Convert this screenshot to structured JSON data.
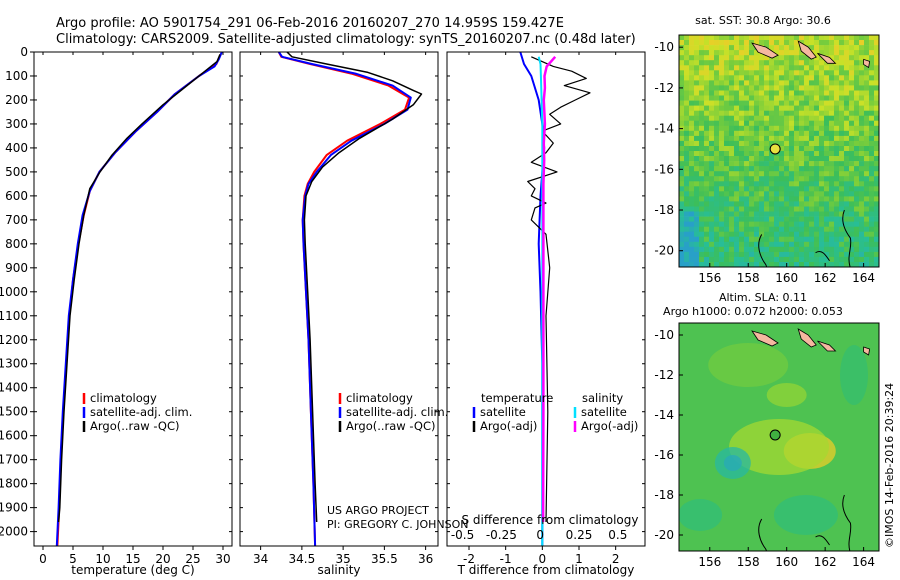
{
  "header": {
    "line1": "Argo profile: AO 5901754_291 06-Feb-2016 20160207_270 14.959S 159.427E",
    "line2": "Climatology: CARS2009. Satellite-adjusted climatology: synTS_20160207.nc (0.48d later)"
  },
  "colors": {
    "climatology": "#ff0000",
    "satellite": "#0000ff",
    "argo": "#000000",
    "sal_satellite": "#00e0ff",
    "sal_argo": "#ff00ff"
  },
  "depth_axis": {
    "ticks": [
      0,
      100,
      200,
      300,
      400,
      500,
      600,
      700,
      800,
      900,
      1000,
      1100,
      1200,
      1300,
      1400,
      1500,
      1600,
      1700,
      1800,
      1900,
      2000
    ],
    "range": [
      0,
      2060
    ]
  },
  "chart_data": [
    {
      "type": "line",
      "xlabel": "temperature (deg C)",
      "xlim": [
        -1.5,
        31.5
      ],
      "xticks": [
        0,
        5,
        10,
        15,
        20,
        25,
        30
      ],
      "ylim": [
        0,
        2060
      ],
      "legend": {
        "placement": "lower-left",
        "entries": [
          "climatology",
          "satellite-adj. clim.",
          "Argo(..raw -QC)"
        ]
      },
      "series": [
        {
          "name": "climatology",
          "color": "#ff0000",
          "width": 2,
          "points": [
            [
              29.6,
              10
            ],
            [
              28.9,
              50
            ],
            [
              26,
              100
            ],
            [
              22,
              175
            ],
            [
              19,
              250
            ],
            [
              15.5,
              330
            ],
            [
              12,
              420
            ],
            [
              9.4,
              500
            ],
            [
              7.8,
              580
            ],
            [
              6.8,
              680
            ],
            [
              5.9,
              800
            ],
            [
              5,
              950
            ],
            [
              4.4,
              1100
            ],
            [
              3.9,
              1300
            ],
            [
              3.4,
              1500
            ],
            [
              3.0,
              1700
            ],
            [
              2.7,
              1900
            ],
            [
              2.4,
              2060
            ]
          ]
        },
        {
          "name": "satellite-adj. clim.",
          "color": "#0000ff",
          "width": 2,
          "points": [
            [
              29.8,
              0
            ],
            [
              29.3,
              30
            ],
            [
              28.6,
              60
            ],
            [
              26,
              100
            ],
            [
              22,
              175
            ],
            [
              19,
              250
            ],
            [
              15.5,
              330
            ],
            [
              12,
              420
            ],
            [
              9.4,
              500
            ],
            [
              7.8,
              580
            ],
            [
              6.6,
              680
            ],
            [
              5.8,
              800
            ],
            [
              5,
              950
            ],
            [
              4.3,
              1100
            ],
            [
              3.8,
              1300
            ],
            [
              3.3,
              1500
            ],
            [
              2.9,
              1700
            ],
            [
              2.6,
              1900
            ],
            [
              2.3,
              2060
            ]
          ]
        },
        {
          "name": "Argo(..raw -QC)",
          "color": "#000000",
          "width": 1.5,
          "points": [
            [
              29.5,
              10
            ],
            [
              29,
              40
            ],
            [
              27,
              80
            ],
            [
              23.5,
              150
            ],
            [
              20,
              220
            ],
            [
              16.5,
              300
            ],
            [
              14,
              360
            ],
            [
              11.5,
              430
            ],
            [
              9.5,
              500
            ],
            [
              7.8,
              570
            ],
            [
              6.8,
              680
            ],
            [
              6,
              800
            ],
            [
              5.2,
              950
            ],
            [
              4.5,
              1100
            ],
            [
              4,
              1300
            ],
            [
              3.5,
              1500
            ],
            [
              3.1,
              1700
            ],
            [
              2.8,
              1900
            ],
            [
              2.6,
              1960
            ]
          ]
        }
      ]
    },
    {
      "type": "line",
      "xlabel": "salinity",
      "xlim": [
        33.75,
        36.15
      ],
      "xticks": [
        34,
        34.5,
        35,
        35.5,
        36
      ],
      "ylim": [
        0,
        2060
      ],
      "legend": {
        "placement": "lower-right",
        "entries": [
          "climatology",
          "satellite-adj. clim.",
          "Argo(..raw -QC)"
        ]
      },
      "series": [
        {
          "name": "climatology",
          "color": "#ff0000",
          "width": 2,
          "points": [
            [
              34.22,
              0
            ],
            [
              34.25,
              20
            ],
            [
              34.6,
              50
            ],
            [
              35.1,
              90
            ],
            [
              35.55,
              140
            ],
            [
              35.8,
              190
            ],
            [
              35.75,
              240
            ],
            [
              35.45,
              300
            ],
            [
              35.05,
              370
            ],
            [
              34.8,
              430
            ],
            [
              34.65,
              500
            ],
            [
              34.57,
              550
            ],
            [
              34.53,
              600
            ],
            [
              34.51,
              700
            ],
            [
              34.52,
              800
            ],
            [
              34.55,
              1000
            ],
            [
              34.58,
              1200
            ],
            [
              34.61,
              1500
            ],
            [
              34.64,
              1800
            ],
            [
              34.66,
              2060
            ]
          ]
        },
        {
          "name": "satellite-adj. clim.",
          "color": "#0000ff",
          "width": 2,
          "points": [
            [
              34.22,
              0
            ],
            [
              34.26,
              20
            ],
            [
              34.62,
              50
            ],
            [
              35.15,
              90
            ],
            [
              35.6,
              140
            ],
            [
              35.82,
              190
            ],
            [
              35.78,
              240
            ],
            [
              35.5,
              300
            ],
            [
              35.1,
              370
            ],
            [
              34.85,
              430
            ],
            [
              34.68,
              500
            ],
            [
              34.58,
              550
            ],
            [
              34.54,
              600
            ],
            [
              34.51,
              700
            ],
            [
              34.52,
              800
            ],
            [
              34.55,
              1000
            ],
            [
              34.58,
              1200
            ],
            [
              34.61,
              1500
            ],
            [
              34.64,
              1800
            ],
            [
              34.66,
              2060
            ]
          ]
        },
        {
          "name": "Argo(..raw -QC)",
          "color": "#000000",
          "width": 1.5,
          "points": [
            [
              34.32,
              0
            ],
            [
              34.38,
              20
            ],
            [
              34.8,
              50
            ],
            [
              35.3,
              85
            ],
            [
              35.6,
              120
            ],
            [
              35.85,
              160
            ],
            [
              35.95,
              175
            ],
            [
              35.85,
              220
            ],
            [
              35.6,
              280
            ],
            [
              35.4,
              320
            ],
            [
              35.2,
              360
            ],
            [
              34.95,
              420
            ],
            [
              34.75,
              480
            ],
            [
              34.62,
              540
            ],
            [
              34.55,
              600
            ],
            [
              34.53,
              700
            ],
            [
              34.54,
              800
            ],
            [
              34.57,
              1000
            ],
            [
              34.6,
              1200
            ],
            [
              34.63,
              1500
            ],
            [
              34.66,
              1800
            ],
            [
              34.68,
              1960
            ]
          ]
        }
      ]
    },
    {
      "type": "line",
      "xlabel": "T difference from climatology",
      "xlabel_top": "S difference from climatology",
      "xlim": [
        -2.6,
        2.8
      ],
      "xticks": [
        -2,
        -1,
        0,
        1,
        2
      ],
      "xticks_top": [
        -0.5,
        -0.25,
        0,
        0.25,
        0.5
      ],
      "ylim": [
        0,
        2060
      ],
      "legend": {
        "placement": "lower",
        "temperature": {
          "title": "temperature",
          "entries": [
            "satellite",
            "Argo(-adj)"
          ]
        },
        "salinity": {
          "title": "salinity",
          "entries": [
            "satellite",
            "Argo(-adj)"
          ]
        }
      },
      "series": [
        {
          "name": "T satellite",
          "color": "#0000ff",
          "width": 2,
          "points": [
            [
              -0.6,
              0
            ],
            [
              -0.5,
              50
            ],
            [
              -0.3,
              100
            ],
            [
              -0.1,
              200
            ],
            [
              0,
              300
            ],
            [
              0.05,
              400
            ],
            [
              0,
              500
            ],
            [
              -0.05,
              600
            ],
            [
              -0.1,
              800
            ],
            [
              -0.05,
              1000
            ],
            [
              0,
              1300
            ],
            [
              0,
              1600
            ],
            [
              0,
              2060
            ]
          ]
        },
        {
          "name": "T Argo(-adj)",
          "color": "#000000",
          "width": 1.2,
          "points": [
            [
              -0.3,
              20
            ],
            [
              0.3,
              60
            ],
            [
              0.8,
              80
            ],
            [
              1.2,
              110
            ],
            [
              0.6,
              140
            ],
            [
              1.3,
              170
            ],
            [
              0.9,
              200
            ],
            [
              0.5,
              230
            ],
            [
              0.2,
              260
            ],
            [
              0.5,
              300
            ],
            [
              0,
              330
            ],
            [
              0.3,
              380
            ],
            [
              0.1,
              420
            ],
            [
              -0.3,
              460
            ],
            [
              0.4,
              500
            ],
            [
              -0.4,
              540
            ],
            [
              -0.2,
              570
            ],
            [
              -0.3,
              600
            ],
            [
              0.1,
              630
            ],
            [
              -0.2,
              650
            ],
            [
              -0.3,
              700
            ],
            [
              0.1,
              760
            ],
            [
              0.2,
              900
            ],
            [
              0.1,
              1100
            ],
            [
              0.15,
              1500
            ],
            [
              0.1,
              1960
            ]
          ]
        },
        {
          "name": "S satellite",
          "color": "#00e0ff",
          "width": 2,
          "points": [
            [
              -0.1,
              20
            ],
            [
              -0.05,
              50
            ],
            [
              -0.04,
              100
            ],
            [
              -0.02,
              200
            ],
            [
              0,
              300
            ],
            [
              0,
              500
            ],
            [
              0,
              1000
            ],
            [
              0,
              2060
            ]
          ]
        },
        {
          "name": "S Argo(-adj)",
          "color": "#ff00ff",
          "width": 2.5,
          "points": [
            [
              0.35,
              20
            ],
            [
              0.12,
              60
            ],
            [
              0.06,
              100
            ],
            [
              0.07,
              150
            ],
            [
              0.04,
              200
            ],
            [
              0.07,
              300
            ],
            [
              0.04,
              380
            ],
            [
              0.05,
              450
            ],
            [
              0.03,
              550
            ],
            [
              0.03,
              700
            ],
            [
              0.03,
              1000
            ],
            [
              0.03,
              1500
            ],
            [
              0.02,
              1960
            ]
          ]
        }
      ]
    }
  ],
  "annotation": {
    "project": "US ARGO PROJECT",
    "pi": "PI: GREGORY C. JOHNSON"
  },
  "maps": [
    {
      "title_line1": "sat. SST: 30.8  Argo: 30.6",
      "title_line2": "",
      "lon_ticks": [
        156,
        158,
        160,
        162,
        164
      ],
      "lat_ticks": [
        -10,
        -12,
        -14,
        -16,
        -18,
        -20
      ],
      "lon_range": [
        154.4,
        164.8
      ],
      "lat_range": [
        -20.8,
        -9.4
      ],
      "marker": {
        "lon": 159.4,
        "lat": -15.0
      }
    },
    {
      "title_line1": "Altim. SLA: 0.11",
      "title_line2": "Argo h1000: 0.072 h2000: 0.053",
      "lon_ticks": [
        156,
        158,
        160,
        162,
        164
      ],
      "lat_ticks": [
        -10,
        -12,
        -14,
        -16,
        -18,
        -20
      ],
      "lon_range": [
        154.4,
        164.8
      ],
      "lat_range": [
        -20.8,
        -9.4
      ],
      "marker": {
        "lon": 159.4,
        "lat": -15.0
      }
    }
  ],
  "legend_labels": {
    "climatology": "climatology",
    "satellite_adj": "satellite-adj. clim.",
    "argo_raw": "Argo(..raw -QC)",
    "satellite": "satellite",
    "argo_adj": "Argo(-adj)"
  },
  "credit": "©IMOS 14-Feb-2016 20:39:24"
}
